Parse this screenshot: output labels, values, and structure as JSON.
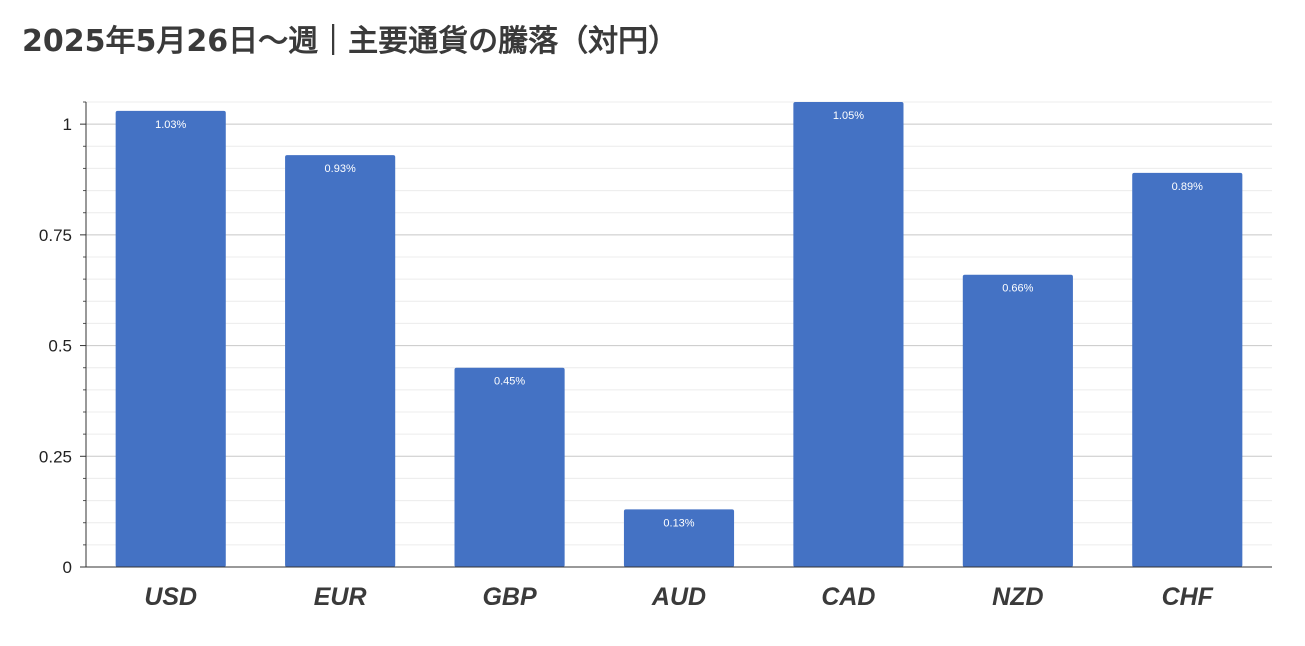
{
  "chart_data": {
    "type": "bar",
    "title": "2025年5月26日～週｜主要通貨の騰落（対円）",
    "categories": [
      "USD",
      "EUR",
      "GBP",
      "AUD",
      "CAD",
      "NZD",
      "CHF"
    ],
    "values": [
      1.03,
      0.93,
      0.45,
      0.13,
      1.05,
      0.66,
      0.89
    ],
    "data_labels": [
      "1.03%",
      "0.93%",
      "0.45%",
      "0.13%",
      "1.05%",
      "0.66%",
      "0.89%"
    ],
    "yticks": [
      0,
      0.25,
      0.5,
      0.75,
      1
    ],
    "ytick_labels": [
      "0",
      "0.25",
      "0.5",
      "0.75",
      "1"
    ],
    "ylim": [
      0,
      1.05
    ],
    "grid": true,
    "legend": "none",
    "bar_color": "#4472c4"
  }
}
